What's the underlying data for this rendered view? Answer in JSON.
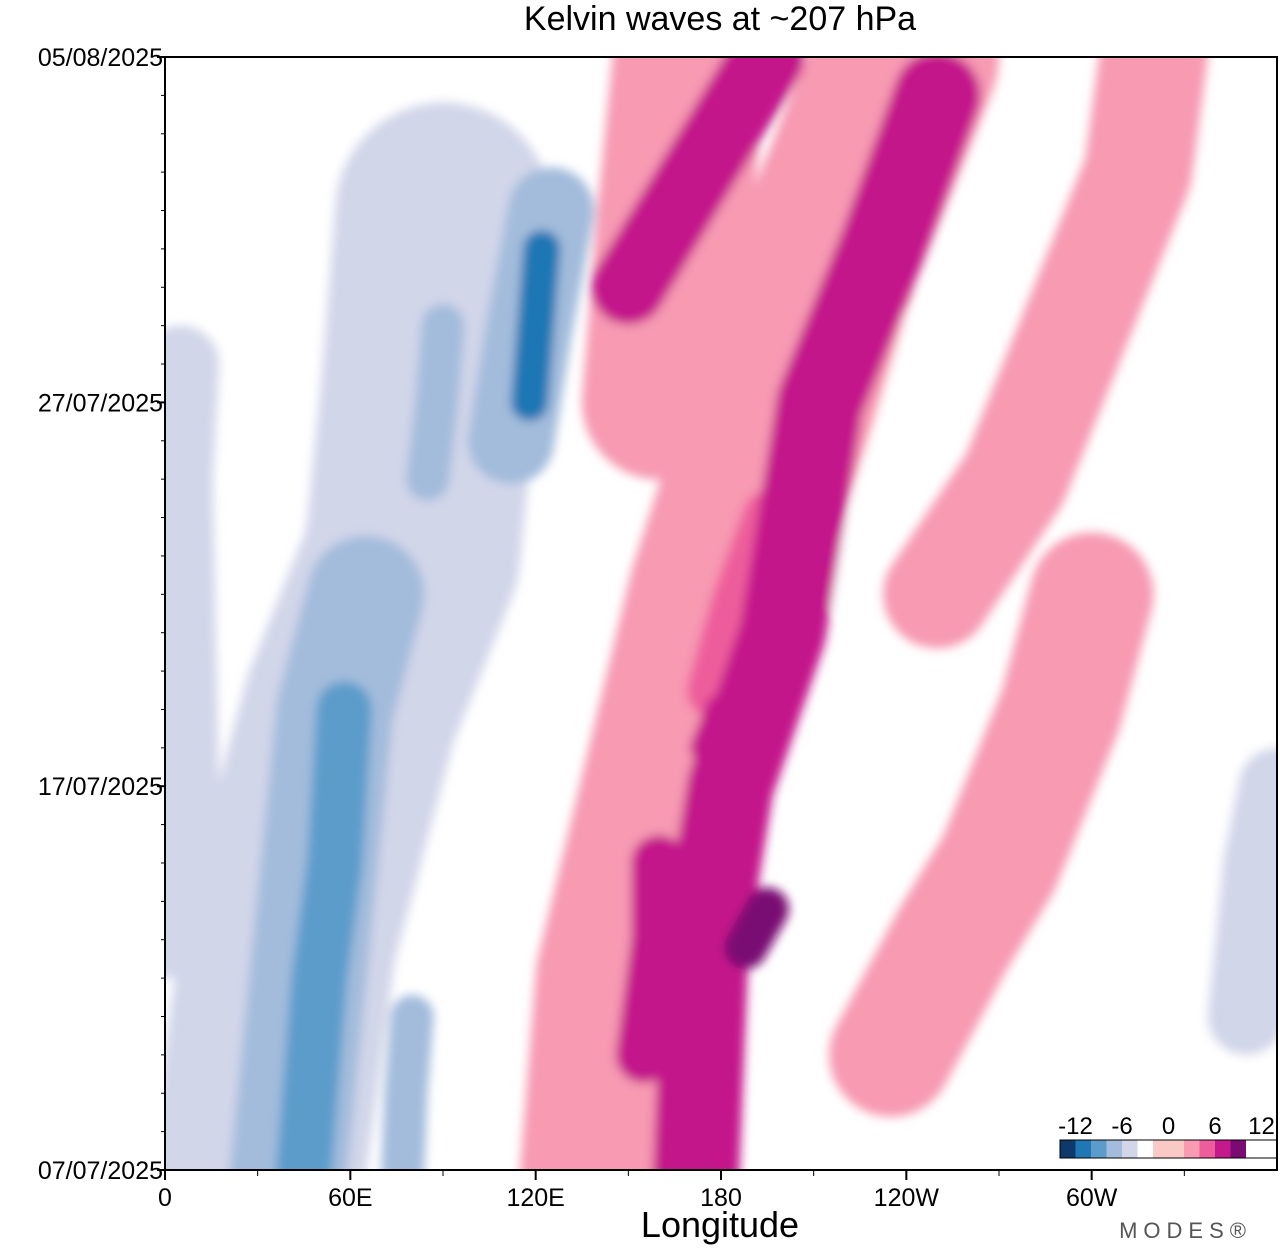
{
  "chart_data": {
    "type": "heatmap",
    "title": "Kelvin waves at ~207 hPa",
    "xlabel": "Longitude",
    "ylabel": "",
    "x_ticks": [
      "0",
      "60E",
      "120E",
      "180",
      "120W",
      "60W"
    ],
    "x_tick_values": [
      0,
      60,
      120,
      180,
      240,
      300
    ],
    "xlim": [
      0,
      360
    ],
    "y_ticks": [
      "07/07/2025",
      "17/07/2025",
      "27/07/2025",
      "05/08/2025"
    ],
    "y_tick_values": [
      0,
      10,
      20,
      29
    ],
    "ylim": [
      0,
      29
    ],
    "colorbar": {
      "tick_labels": [
        "-12",
        "-6",
        "0",
        "6",
        "12"
      ],
      "tick_values": [
        -12,
        -6,
        0,
        6,
        12
      ],
      "levels": [
        -14,
        -12,
        -10,
        -8,
        -6,
        -4,
        -2,
        2,
        4,
        6,
        8,
        10,
        12,
        14
      ],
      "colors": [
        "#0d3a6b",
        "#1f77b4",
        "#5b9ccb",
        "#a3bcdc",
        "#d2d6e9",
        "#ffffff",
        "#f9c9c5",
        "#f79ab2",
        "#ee5d9b",
        "#c4198b",
        "#7a0b73"
      ]
    },
    "anomaly_bands": [
      {
        "value": 6,
        "points": [
          [
            172,
            0
          ],
          [
            175,
            6
          ],
          [
            183,
            10
          ],
          [
            200,
            14
          ],
          [
            212,
            20
          ],
          [
            232,
            24
          ],
          [
            250,
            28
          ]
        ],
        "width": 28
      },
      {
        "value": 5,
        "points": [
          [
            178,
            12.5
          ],
          [
            186,
            14.8
          ],
          [
            196,
            17
          ]
        ],
        "width": 18
      },
      {
        "value": 9,
        "points": [
          [
            188,
            5.8
          ],
          [
            195,
            6.8
          ]
        ],
        "width": 14
      },
      {
        "value": 6,
        "points": [
          [
            155,
            3
          ],
          [
            160,
            6
          ],
          [
            160,
            8
          ]
        ],
        "width": 18
      },
      {
        "value": 7,
        "points": [
          [
            175,
            11
          ],
          [
            180,
            12
          ]
        ],
        "width": 10
      },
      {
        "value": 6,
        "points": [
          [
            150,
            23
          ],
          [
            165,
            25
          ],
          [
            180,
            27
          ],
          [
            195,
            29
          ]
        ],
        "width": 24
      },
      {
        "value": 3,
        "points": [
          [
            145,
            0
          ],
          [
            150,
            5
          ],
          [
            165,
            10
          ],
          [
            180,
            15
          ],
          [
            200,
            20
          ],
          [
            215,
            24
          ],
          [
            240,
            29
          ]
        ],
        "width": 60
      },
      {
        "value": 3,
        "points": [
          [
            235,
            3
          ],
          [
            255,
            6
          ],
          [
            270,
            8
          ],
          [
            290,
            12
          ],
          [
            300,
            15
          ]
        ],
        "width": 40
      },
      {
        "value": 3,
        "points": [
          [
            250,
            15
          ],
          [
            275,
            18
          ],
          [
            295,
            22
          ],
          [
            315,
            26
          ],
          [
            320,
            29
          ]
        ],
        "width": 35
      },
      {
        "value": 3,
        "points": [
          [
            160,
            20
          ],
          [
            165,
            25
          ],
          [
            170,
            29
          ]
        ],
        "width": 50
      },
      {
        "value": -10,
        "points": [
          [
            45,
            0
          ],
          [
            50,
            5
          ],
          [
            55,
            8
          ],
          [
            58,
            12
          ]
        ],
        "width": 18
      },
      {
        "value": -7,
        "points": [
          [
            40,
            0
          ],
          [
            45,
            4
          ],
          [
            50,
            8
          ],
          [
            55,
            12
          ],
          [
            65,
            15
          ]
        ],
        "width": 38
      },
      {
        "value": -11,
        "points": [
          [
            118,
            20
          ],
          [
            120,
            22
          ],
          [
            122,
            24
          ]
        ],
        "width": 12
      },
      {
        "value": -7,
        "points": [
          [
            112,
            19
          ],
          [
            118,
            22
          ],
          [
            125,
            25
          ]
        ],
        "width": 28
      },
      {
        "value": -7,
        "points": [
          [
            85,
            18
          ],
          [
            88,
            20
          ],
          [
            90,
            22
          ]
        ],
        "width": 14
      },
      {
        "value": -8,
        "points": [
          [
            77,
            0
          ],
          [
            78,
            2
          ],
          [
            80,
            4
          ]
        ],
        "width": 14
      },
      {
        "value": -5,
        "points": [
          [
            30,
            0
          ],
          [
            40,
            6
          ],
          [
            60,
            12
          ],
          [
            80,
            16
          ],
          [
            85,
            20
          ],
          [
            90,
            25
          ]
        ],
        "width": 70
      },
      {
        "value": -5,
        "points": [
          [
            0,
            6
          ],
          [
            5,
            10
          ],
          [
            3,
            18
          ],
          [
            5,
            21
          ]
        ],
        "width": 25
      },
      {
        "value": -6,
        "points": [
          [
            350,
            4
          ],
          [
            355,
            8
          ],
          [
            360,
            10
          ]
        ],
        "width": 25
      },
      {
        "value": -3,
        "points": [
          [
            55,
            22
          ],
          [
            60,
            26
          ],
          [
            65,
            29
          ]
        ],
        "width": 30
      },
      {
        "value": -3,
        "points": [
          [
            220,
            15
          ],
          [
            235,
            19
          ],
          [
            245,
            22
          ]
        ],
        "width": 12
      },
      {
        "value": -3,
        "points": [
          [
            345,
            0
          ],
          [
            345,
            10
          ],
          [
            360,
            14
          ]
        ],
        "width": 30
      }
    ]
  },
  "brand": "MODES®"
}
